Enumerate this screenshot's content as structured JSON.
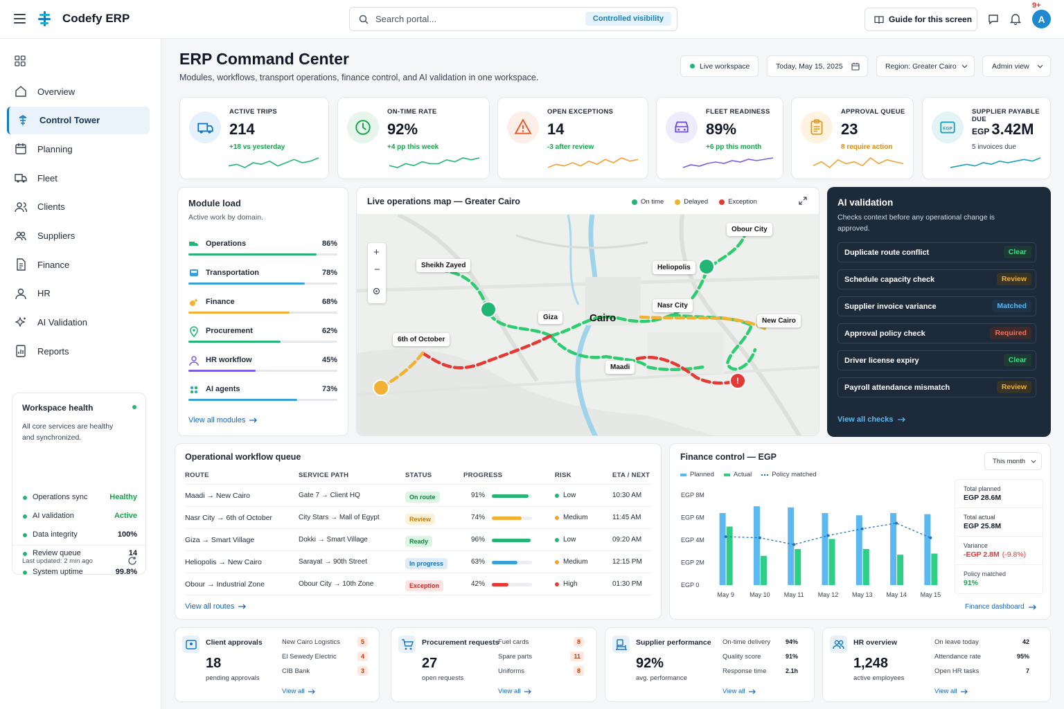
{
  "app": {
    "name": "Codefy ERP",
    "notification_count": "9+",
    "avatar_initial": "A"
  },
  "search": {
    "placeholder": "Search portal...",
    "badge": "Controlled visibility"
  },
  "header_buttons": {
    "guide": "Guide for this screen"
  },
  "sidebar": {
    "items": [
      {
        "label": "Overview",
        "icon": "home-icon"
      },
      {
        "label": "Control Tower",
        "icon": "tower-icon",
        "active": true
      },
      {
        "label": "Planning",
        "icon": "calendar-icon"
      },
      {
        "label": "Fleet",
        "icon": "truck-icon"
      },
      {
        "label": "Clients",
        "icon": "users-icon"
      },
      {
        "label": "Suppliers",
        "icon": "supplier-icon"
      },
      {
        "label": "Finance",
        "icon": "document-icon"
      },
      {
        "label": "HR",
        "icon": "user-icon"
      },
      {
        "label": "AI Validation",
        "icon": "sparkle-icon"
      },
      {
        "label": "Reports",
        "icon": "report-icon"
      }
    ],
    "workspace_health": {
      "title": "Workspace health",
      "description": "All core services are healthy and synchronized.",
      "rows": [
        {
          "name": "Operations sync",
          "value": "Healthy",
          "color": "#16a34a"
        },
        {
          "name": "AI validation",
          "value": "Active",
          "color": "#16a34a"
        },
        {
          "name": "Data integrity",
          "value": "100%",
          "color": "#111827"
        },
        {
          "name": "Review queue",
          "value": "14",
          "color": "#111827"
        },
        {
          "name": "System uptime",
          "value": "99.8%",
          "color": "#111827"
        }
      ],
      "updated": "Last updated: 2 min ago"
    }
  },
  "page": {
    "title": "ERP Command Center",
    "subtitle": "Modules, workflows, transport operations, finance control, and AI validation in one workspace.",
    "live": "Live workspace",
    "date": "Today, May 15, 2025",
    "region": "Region: Greater Cairo",
    "view": "Admin view"
  },
  "kpis": [
    {
      "label": "ACTIVE TRIPS",
      "value": "214",
      "sub": "+18 vs yesterday",
      "color": "#16a34a",
      "bg": "#e6f2fb",
      "iconColor": "#1479c4",
      "icon": "truck-icon",
      "spark": [
        4,
        5,
        3,
        6,
        5,
        7,
        4,
        6,
        8,
        6,
        7,
        9
      ]
    },
    {
      "label": "ON-TIME RATE",
      "value": "92%",
      "sub": "+4 pp this week",
      "color": "#16a34a",
      "bg": "#e6f6ec",
      "iconColor": "#16a34a",
      "icon": "clock-icon",
      "spark": [
        4,
        3,
        5,
        4,
        6,
        5,
        5,
        7,
        6,
        8,
        7,
        8
      ]
    },
    {
      "label": "OPEN EXCEPTIONS",
      "value": "14",
      "sub": "-3 after review",
      "color": "#16a34a",
      "bg": "#fdeee8",
      "iconColor": "#e25a2a",
      "icon": "warning-icon",
      "spark": [
        3,
        5,
        4,
        6,
        4,
        7,
        5,
        8,
        6,
        9,
        7,
        8
      ]
    },
    {
      "label": "FLEET READINESS",
      "value": "89%",
      "sub": "+6 pp this month",
      "color": "#16a34a",
      "bg": "#eeebfb",
      "iconColor": "#6d4fd6",
      "icon": "vehicle-icon",
      "spark": [
        2,
        4,
        3,
        5,
        6,
        5,
        7,
        6,
        8,
        7,
        8,
        9
      ]
    },
    {
      "label": "APPROVAL QUEUE",
      "value": "23",
      "sub": "8 require action",
      "color": "#e08a0a",
      "bg": "#fdf3e0",
      "iconColor": "#e59a13",
      "icon": "clipboard-icon",
      "spark": [
        4,
        6,
        3,
        7,
        5,
        6,
        4,
        8,
        5,
        7,
        6,
        5
      ]
    },
    {
      "label": "SUPPLIER PAYABLE DUE",
      "value": "3.42M",
      "prefix": "EGP",
      "sub": "5 invoices due",
      "color": "#374151",
      "bg": "#e3f4f7",
      "iconColor": "#1aa0b8",
      "icon": "currency-icon",
      "spark": [
        3,
        4,
        5,
        4,
        6,
        5,
        7,
        6,
        7,
        8,
        7,
        9
      ]
    }
  ],
  "module_load": {
    "title": "Module load",
    "subtitle": "Active work by domain.",
    "modules": [
      {
        "name": "Operations",
        "pct": "86%",
        "value": 86,
        "color": "#22b573",
        "icon": "truck-icon"
      },
      {
        "name": "Transportation",
        "pct": "78%",
        "value": 78,
        "color": "#3aa1d8",
        "icon": "bus-icon"
      },
      {
        "name": "Finance",
        "pct": "68%",
        "value": 68,
        "color": "#f2b035",
        "icon": "coins-icon"
      },
      {
        "name": "Procurement",
        "pct": "62%",
        "value": 62,
        "color": "#22b573",
        "icon": "pin-icon"
      },
      {
        "name": "HR workflow",
        "pct": "45%",
        "value": 45,
        "color": "#7c5ce0",
        "icon": "user-icon"
      },
      {
        "name": "AI agents",
        "pct": "73%",
        "value": 73,
        "color": "#3aa1d8",
        "icon": "agents-icon"
      }
    ],
    "link": "View all modules"
  },
  "map": {
    "title": "Live operations map — Greater Cairo",
    "legend": [
      {
        "label": "On time",
        "color": "#22b573"
      },
      {
        "label": "Delayed",
        "color": "#f2b035"
      },
      {
        "label": "Exception",
        "color": "#e53935"
      }
    ],
    "labels": [
      "Obour City",
      "Sheikh Zayed",
      "Heliopolis",
      "Nasr City",
      "Giza",
      "Cairo",
      "New Cairo",
      "6th of October",
      "Maadi"
    ]
  },
  "ai": {
    "title": "AI validation",
    "subtitle": "Checks context before any operational change is approved.",
    "checks": [
      {
        "label": "Duplicate route conflict",
        "status": "Clear",
        "fg": "#3ddc84",
        "bg": "#1d3b34"
      },
      {
        "label": "Schedule capacity check",
        "status": "Review",
        "fg": "#f2b035",
        "bg": "#3a3424"
      },
      {
        "label": "Supplier invoice variance",
        "status": "Matched",
        "fg": "#5cb8f0",
        "bg": "#1e3347"
      },
      {
        "label": "Approval policy check",
        "status": "Required",
        "fg": "#ff6b5a",
        "bg": "#3d2a2a"
      },
      {
        "label": "Driver license expiry",
        "status": "Clear",
        "fg": "#3ddc84",
        "bg": "#1d3b34"
      },
      {
        "label": "Payroll attendance mismatch",
        "status": "Review",
        "fg": "#f2b035",
        "bg": "#3a3424"
      }
    ],
    "link": "View all checks"
  },
  "workflow": {
    "title": "Operational workflow queue",
    "headers": [
      "ROUTE",
      "SERVICE PATH",
      "STATUS",
      "PROGRESS",
      "RISK",
      "ETA / NEXT"
    ],
    "rows": [
      {
        "route": "Maadi → New Cairo",
        "path": "Gate 7 → Client HQ",
        "status": "On route",
        "sfg": "#15803d",
        "sbg": "#dcf5e5",
        "progress": "91%",
        "pv": 91,
        "pcolor": "#22b573",
        "risk": "Low",
        "rcolor": "#22b573",
        "eta": "10:30 AM"
      },
      {
        "route": "Nasr City → 6th of October",
        "path": "City Stars → Mall of Egypt",
        "status": "Review",
        "sfg": "#c27c0e",
        "sbg": "#fdf1d8",
        "progress": "74%",
        "pv": 74,
        "pcolor": "#f2b035",
        "risk": "Medium",
        "rcolor": "#f2a035",
        "eta": "11:45 AM"
      },
      {
        "route": "Giza → Smart Village",
        "path": "Dokki → Smart Village",
        "status": "Ready",
        "sfg": "#15803d",
        "sbg": "#dcf5e5",
        "progress": "96%",
        "pv": 96,
        "pcolor": "#22b573",
        "risk": "Low",
        "rcolor": "#22b573",
        "eta": "09:20 AM"
      },
      {
        "route": "Heliopolis → New Cairo",
        "path": "Sarayat → 90th Street",
        "status": "In progress",
        "sfg": "#1d6fb8",
        "sbg": "#dcecfa",
        "progress": "63%",
        "pv": 63,
        "pcolor": "#3aa1d8",
        "risk": "Medium",
        "rcolor": "#f2a035",
        "eta": "12:15 PM"
      },
      {
        "route": "Obour → Industrial Zone",
        "path": "Obour City → 10th Zone",
        "status": "Exception",
        "sfg": "#c62828",
        "sbg": "#fde3e1",
        "progress": "42%",
        "pv": 42,
        "pcolor": "#e53935",
        "risk": "High",
        "rcolor": "#e53935",
        "eta": "01:30 PM"
      }
    ],
    "link": "View all routes"
  },
  "finance": {
    "title": "Finance control — EGP",
    "period": "This month",
    "stats": [
      {
        "label": "Total planned",
        "value": "EGP 28.6M",
        "color": "#111827"
      },
      {
        "label": "Total actual",
        "value": "EGP 25.8M",
        "color": "#111827"
      },
      {
        "label": "Variance",
        "value": "-EGP 2.8M",
        "extra": "(-9.8%)",
        "color": "#e53935"
      },
      {
        "label": "Policy matched",
        "value": "91%",
        "color": "#16a34a"
      }
    ],
    "link": "Finance dashboard"
  },
  "chart_data": {
    "type": "bar",
    "categories": [
      "May 9",
      "May 10",
      "May 11",
      "May 12",
      "May 13",
      "May 14",
      "May 15"
    ],
    "series": [
      {
        "name": "Planned",
        "values": [
          6.4,
          7.0,
          6.9,
          6.4,
          6.2,
          6.4,
          6.3
        ],
        "color": "#5bb8f0"
      },
      {
        "name": "Actual",
        "values": [
          5.2,
          2.6,
          3.2,
          4.1,
          3.2,
          2.7,
          2.8
        ],
        "color": "#2ecf85"
      },
      {
        "name": "Policy matched",
        "values": [
          4.3,
          4.2,
          3.6,
          4.4,
          5.0,
          5.5,
          4.2
        ],
        "color": "#1f72c4"
      }
    ],
    "yticks": [
      "EGP 8M",
      "EGP 6M",
      "EGP 4M",
      "EGP 2M",
      "EGP 0"
    ],
    "ylim": [
      0,
      8
    ]
  },
  "bottom_cards": [
    {
      "title": "Client approvals",
      "value": "18",
      "sub": "pending approvals",
      "icon": "client-icon",
      "items": [
        {
          "name": "New Cairo Logistics",
          "n": "5"
        },
        {
          "name": "El Sewedy Electric",
          "n": "4"
        },
        {
          "name": "CIB Bank",
          "n": "3"
        }
      ],
      "link": "View all"
    },
    {
      "title": "Procurement requests",
      "value": "27",
      "sub": "open requests",
      "icon": "cart-icon",
      "items": [
        {
          "name": "Fuel cards",
          "n": "8"
        },
        {
          "name": "Spare parts",
          "n": "11"
        },
        {
          "name": "Uniforms",
          "n": "8"
        }
      ],
      "link": "View all"
    },
    {
      "title": "Supplier performance",
      "value": "92%",
      "sub": "avg. performance",
      "icon": "factory-icon",
      "items": [
        {
          "name": "On-time delivery",
          "n": "94%"
        },
        {
          "name": "Quality score",
          "n": "91%"
        },
        {
          "name": "Response time",
          "n": "2.1h"
        }
      ],
      "link": "View all"
    },
    {
      "title": "HR overview",
      "value": "1,248",
      "sub": "active employees",
      "icon": "people-icon",
      "items": [
        {
          "name": "On leave today",
          "n": "42"
        },
        {
          "name": "Attendance rate",
          "n": "95%"
        },
        {
          "name": "Open HR tasks",
          "n": "7"
        }
      ],
      "link": "View all"
    }
  ]
}
